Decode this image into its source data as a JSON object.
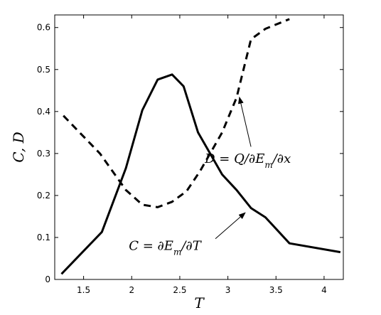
{
  "chart_data": {
    "type": "line",
    "title": "",
    "xlabel": "T",
    "ylabel": "C, D",
    "xlim": [
      1.2,
      4.2
    ],
    "ylim": [
      0,
      0.63
    ],
    "x_ticks": [
      1.5,
      2,
      2.5,
      3,
      3.5,
      4
    ],
    "x_tick_labels": [
      "1.5",
      "2",
      "2.5",
      "3",
      "3.5",
      "4"
    ],
    "y_ticks": [
      0,
      0.1,
      0.2,
      0.3,
      0.4,
      0.5,
      0.6
    ],
    "y_tick_labels": [
      "0",
      "0.1",
      "0.2",
      "0.3",
      "0.4",
      "0.5",
      "0.6"
    ],
    "grid": false,
    "series": [
      {
        "line_style": "solid",
        "color": "#000000",
        "x": [
          1.27,
          1.69,
          1.94,
          2.11,
          2.27,
          2.42,
          2.54,
          2.69,
          2.94,
          3.09,
          3.24,
          3.39,
          3.64,
          4.17
        ],
        "y": [
          0.013,
          0.113,
          0.265,
          0.403,
          0.476,
          0.488,
          0.46,
          0.35,
          0.25,
          0.213,
          0.17,
          0.148,
          0.086,
          0.065
        ]
      },
      {
        "line_style": "dashed",
        "color": "#000000",
        "x": [
          1.29,
          1.67,
          1.94,
          2.11,
          2.27,
          2.42,
          2.57,
          2.71,
          2.94,
          3.09,
          3.24,
          3.39,
          3.64
        ],
        "y": [
          0.39,
          0.3,
          0.213,
          0.178,
          0.172,
          0.185,
          0.21,
          0.258,
          0.35,
          0.433,
          0.572,
          0.597,
          0.62
        ]
      }
    ],
    "annotations": [
      {
        "text": "D = Q/∂E_m/∂x",
        "text_x": 2.76,
        "text_y": 0.278,
        "arrow_from_x": 3.24,
        "arrow_from_y": 0.316,
        "arrow_to_x": 3.12,
        "arrow_to_y": 0.434
      },
      {
        "text": "C = ∂E_m/∂T",
        "text_x": 1.97,
        "text_y": 0.07,
        "arrow_from_x": 2.87,
        "arrow_from_y": 0.097,
        "arrow_to_x": 3.18,
        "arrow_to_y": 0.159
      }
    ]
  }
}
